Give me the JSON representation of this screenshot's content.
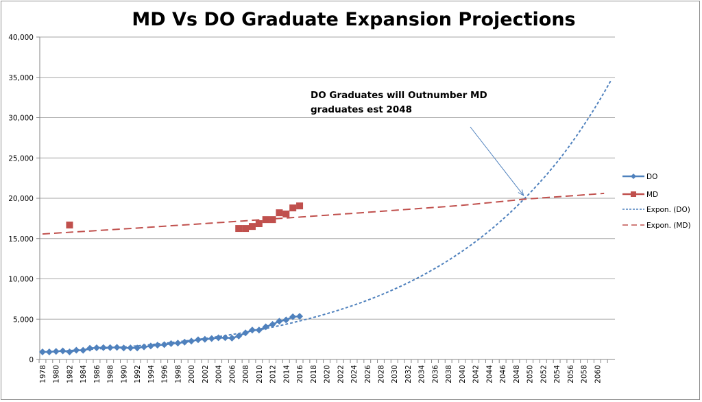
{
  "chart_data": {
    "type": "line",
    "title": "MD Vs DO Graduate Expansion Projections",
    "xlabel": "",
    "ylabel": "",
    "xlim": [
      1977.5,
      2062.3
    ],
    "ylim": [
      0,
      40000
    ],
    "grid": "horizontal",
    "legend_position": "right",
    "y_ticks": [
      0,
      5000,
      10000,
      15000,
      20000,
      25000,
      30000,
      35000,
      40000
    ],
    "y_tick_labels": [
      "0",
      "5,000",
      "10,000",
      "15,000",
      "20,000",
      "25,000",
      "30,000",
      "35,000",
      "40,000"
    ],
    "x_tick_labels": [
      "1978",
      "1980",
      "1982",
      "1984",
      "1986",
      "1988",
      "1990",
      "1992",
      "1994",
      "1996",
      "1998",
      "2000",
      "2002",
      "2004",
      "2006",
      "2008",
      "2010",
      "2012",
      "2014",
      "2016",
      "2018",
      "2020",
      "2022",
      "2024",
      "2026",
      "2028",
      "2030",
      "2032",
      "2034",
      "2036",
      "2038",
      "2040",
      "2042",
      "2044",
      "2046",
      "2048",
      "2050",
      "2052",
      "2054",
      "2056",
      "2058",
      "2060"
    ],
    "series": [
      {
        "name": "DO",
        "kind": "line-marker",
        "marker": "diamond",
        "color": "#4f81bd",
        "x": [
          1978,
          1979,
          1980,
          1981,
          1982,
          1983,
          1984,
          1985,
          1986,
          1987,
          1988,
          1989,
          1990,
          1991,
          1992,
          1993,
          1994,
          1995,
          1996,
          1997,
          1998,
          1999,
          2000,
          2001,
          2002,
          2003,
          2004,
          2005,
          2006,
          2007,
          2008,
          2009,
          2010,
          2011,
          2012,
          2013,
          2014,
          2015,
          2016
        ],
        "values": [
          940,
          940,
          1000,
          1060,
          940,
          1150,
          1140,
          1390,
          1450,
          1470,
          1470,
          1500,
          1430,
          1440,
          1430,
          1560,
          1670,
          1780,
          1840,
          1970,
          2030,
          2150,
          2280,
          2450,
          2500,
          2600,
          2690,
          2700,
          2650,
          2900,
          3300,
          3650,
          3650,
          4050,
          4350,
          4750,
          4900,
          5300,
          5350
        ]
      },
      {
        "name": "MD",
        "kind": "marker",
        "marker": "square",
        "color": "#c0504d",
        "x": [
          1982,
          2007,
          2008,
          2009,
          2010,
          2011,
          2012,
          2013,
          2014,
          2015,
          2016
        ],
        "values": [
          16680,
          16250,
          16250,
          16500,
          16850,
          17350,
          17350,
          18200,
          18050,
          18800,
          19050
        ]
      },
      {
        "name": "Expon. (DO)",
        "kind": "trendline",
        "style": "dotted",
        "color": "#4f81bd",
        "x": [
          1978,
          1990,
          2000,
          2010,
          2020,
          2030,
          2040,
          2049.4,
          2055,
          2062
        ],
        "values": [
          927,
          1550,
          2390,
          3680,
          5670,
          8720,
          13410,
          20100,
          25500,
          34600
        ]
      },
      {
        "name": "Expon. (MD)",
        "kind": "trendline",
        "style": "dashed",
        "color": "#c0504d",
        "x": [
          1978,
          1990,
          2000,
          2010,
          2020,
          2030,
          2040,
          2049.4,
          2061
        ],
        "values": [
          15570,
          16200,
          16750,
          17320,
          17900,
          18500,
          19120,
          19900,
          20600
        ]
      }
    ],
    "annotations": [
      {
        "text_lines": [
          "DO Graduates will Outnumber MD",
          "graduates est 2048"
        ],
        "arrow_to": {
          "x": 2049.4,
          "y": 20000
        },
        "arrow_color": "#4f81bd"
      }
    ]
  },
  "legend": {
    "items": [
      {
        "label": "DO",
        "color": "#4f81bd",
        "style": "line-diamond"
      },
      {
        "label": "MD",
        "color": "#c0504d",
        "style": "line-square"
      },
      {
        "label": "Expon. (DO)",
        "color": "#4f81bd",
        "style": "dotted"
      },
      {
        "label": "Expon. (MD)",
        "color": "#c0504d",
        "style": "dashed"
      }
    ]
  }
}
